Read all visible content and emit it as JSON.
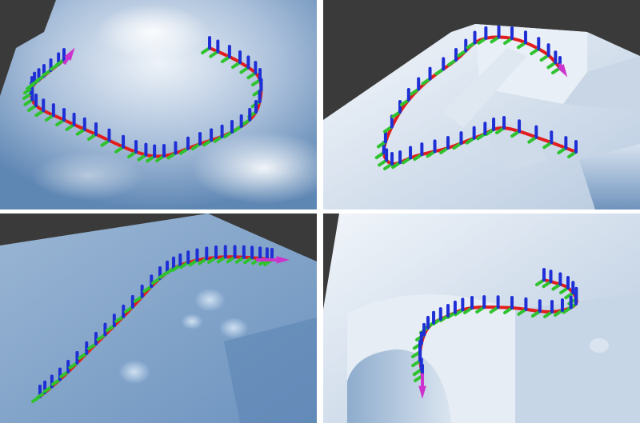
{
  "figure": {
    "panels": [
      {
        "id": "top-left",
        "scene": "rough-terrain-heightmap",
        "path_shape": "u-curve"
      },
      {
        "id": "top-right",
        "scene": "stairs-and-platform",
        "path_shape": "s-curve"
      },
      {
        "id": "bottom-left",
        "scene": "slope-with-bumps",
        "path_shape": "curve-to-right"
      },
      {
        "id": "bottom-right",
        "scene": "arch-and-blocks",
        "path_shape": "descending-spiral"
      }
    ],
    "colors": {
      "background_dark": "#3a3a3a",
      "terrain_light": "#e8eef6",
      "terrain_mid": "#9fb6d2",
      "terrain_dark": "#4f78a6",
      "path": "#e21d1d",
      "axis_x_red": "#d12020",
      "axis_y_green": "#2fc22f",
      "axis_z_blue": "#1e2fd6",
      "goal_arrow": "#cc33cc"
    }
  }
}
